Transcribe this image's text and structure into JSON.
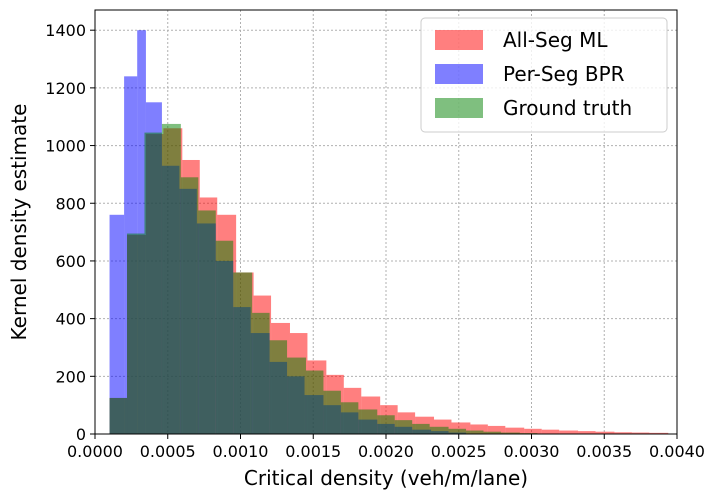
{
  "chart_data": {
    "type": "histogram",
    "xlabel": "Critical density (veh/m/lane)",
    "ylabel": "Kernel density estimate",
    "xlim": [
      0.0,
      0.004
    ],
    "ylim": [
      0,
      1470
    ],
    "x_ticks": [
      0.0,
      0.0005,
      0.001,
      0.0015,
      0.002,
      0.0025,
      0.003,
      0.0035,
      0.004
    ],
    "x_tick_labels": [
      "0.0000",
      "0.0005",
      "0.0010",
      "0.0015",
      "0.0020",
      "0.0025",
      "0.0030",
      "0.0035",
      "0.0040"
    ],
    "y_ticks": [
      0,
      200,
      400,
      600,
      800,
      1000,
      1200,
      1400
    ],
    "y_tick_labels": [
      "0",
      "200",
      "400",
      "600",
      "800",
      "1000",
      "1200",
      "1400"
    ],
    "grid": true,
    "legend_position": "top-right",
    "series": [
      {
        "name": "All-Seg ML",
        "color": "#ff0000",
        "alpha": 0.5,
        "edges": [
          0.0001,
          0.00022,
          0.00035,
          0.00047,
          0.0006,
          0.00072,
          0.00084,
          0.00097,
          0.00109,
          0.00121,
          0.00134,
          0.00146,
          0.00159,
          0.00171,
          0.00183,
          0.00196,
          0.00208,
          0.0022,
          0.00233,
          0.00245,
          0.00258,
          0.0027,
          0.00282,
          0.00295,
          0.00307,
          0.00319,
          0.00332,
          0.00344,
          0.00357,
          0.00369,
          0.00381,
          0.00394
        ],
        "values": [
          125,
          690,
          1040,
          1060,
          950,
          820,
          760,
          560,
          480,
          385,
          350,
          255,
          205,
          160,
          130,
          100,
          75,
          60,
          50,
          40,
          33,
          28,
          22,
          18,
          15,
          12,
          10,
          8,
          6,
          5,
          4
        ]
      },
      {
        "name": "Per-Seg BPR",
        "color": "#0000ff",
        "alpha": 0.5,
        "edges": [
          0.0001,
          0.0002,
          0.00029,
          0.00035,
          0.00046,
          0.00058,
          0.0007,
          0.00083,
          0.00095,
          0.00107,
          0.0012,
          0.00132,
          0.00144,
          0.00157,
          0.00169,
          0.00181,
          0.00194,
          0.00206,
          0.00218,
          0.00231,
          0.00243,
          0.00255
        ],
        "values": [
          760,
          1240,
          1400,
          1150,
          930,
          850,
          730,
          600,
          440,
          350,
          250,
          200,
          135,
          100,
          75,
          50,
          35,
          25,
          15,
          10,
          5
        ]
      },
      {
        "name": "Ground truth",
        "color": "#008000",
        "alpha": 0.5,
        "edges": [
          0.0001,
          0.00022,
          0.00034,
          0.00046,
          0.00059,
          0.00071,
          0.00083,
          0.00095,
          0.00108,
          0.0012,
          0.00132,
          0.00145,
          0.00157,
          0.00169,
          0.00181,
          0.00194,
          0.00206,
          0.00218,
          0.0023,
          0.00243,
          0.00255,
          0.00267,
          0.00279,
          0.00292,
          0.00304
        ],
        "values": [
          125,
          695,
          1045,
          1075,
          890,
          775,
          670,
          560,
          420,
          325,
          265,
          220,
          150,
          110,
          85,
          65,
          48,
          35,
          25,
          18,
          12,
          8,
          5,
          3
        ]
      }
    ]
  }
}
